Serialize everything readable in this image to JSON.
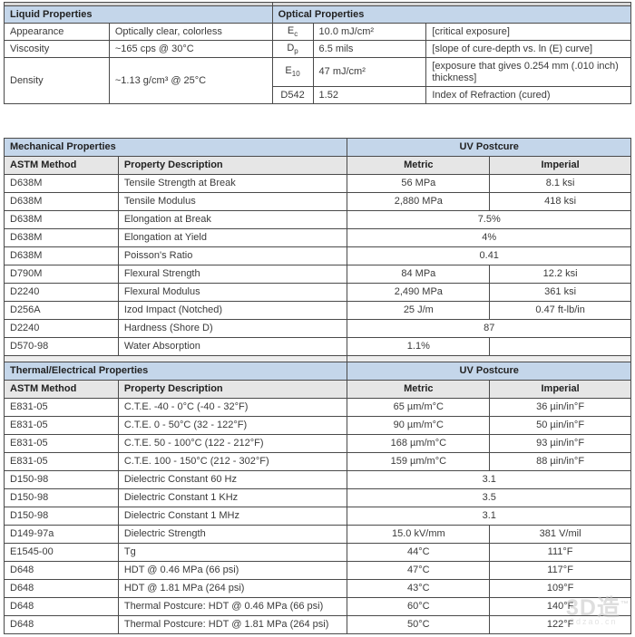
{
  "liquid_table": {
    "title": "Liquid Properties",
    "rows": [
      {
        "label": "Appearance",
        "value": "Optically clear, colorless"
      },
      {
        "label": "Viscosity",
        "value": "~165 cps @ 30°C"
      },
      {
        "label": "Density",
        "value": "~1.13 g/cm³ @ 25°C"
      }
    ]
  },
  "optical_table": {
    "title": "Optical Properties",
    "rows": [
      {
        "symbol_base": "E",
        "symbol_sub": "c",
        "value": "10.0 mJ/cm²",
        "description": "[critical exposure]"
      },
      {
        "symbol_base": "D",
        "symbol_sub": "p",
        "value": "6.5 mils",
        "description": "[slope of cure-depth vs. ln (E) curve]"
      },
      {
        "symbol_base": "E",
        "symbol_sub": "10",
        "value": "47 mJ/cm²",
        "description": "[exposure that gives 0.254 mm (.010 inch) thickness]"
      },
      {
        "symbol_base": "D542",
        "symbol_sub": "",
        "value": "1.52",
        "description": "Index of Refraction (cured)"
      }
    ]
  },
  "mechanical_table": {
    "title": "Mechanical Properties",
    "postcure_header": "UV Postcure",
    "columns": [
      "ASTM Method",
      "Property Description",
      "Metric",
      "Imperial"
    ],
    "rows": [
      {
        "method": "D638M",
        "property": "Tensile Strength at Break",
        "metric": "56 MPa",
        "imperial": "8.1 ksi",
        "span": false
      },
      {
        "method": "D638M",
        "property": "Tensile Modulus",
        "metric": "2,880 MPa",
        "imperial": "418 ksi",
        "span": false
      },
      {
        "method": "D638M",
        "property": "Elongation at Break",
        "metric": "7.5%",
        "imperial": "",
        "span": true
      },
      {
        "method": "D638M",
        "property": "Elongation at Yield",
        "metric": "4%",
        "imperial": "",
        "span": true
      },
      {
        "method": "D638M",
        "property": "Poisson's Ratio",
        "metric": "0.41",
        "imperial": "",
        "span": true
      },
      {
        "method": "D790M",
        "property": "Flexural Strength",
        "metric": "84 MPa",
        "imperial": "12.2 ksi",
        "span": false
      },
      {
        "method": "D2240",
        "property": "Flexural Modulus",
        "metric": "2,490 MPa",
        "imperial": "361 ksi",
        "span": false
      },
      {
        "method": "D256A",
        "property": "Izod Impact (Notched)",
        "metric": "25 J/m",
        "imperial": "0.47 ft-lb/in",
        "span": false
      },
      {
        "method": "D2240",
        "property": "Hardness (Shore D)",
        "metric": "87",
        "imperial": "",
        "span": true
      },
      {
        "method": "D570-98",
        "property": "Water Absorption",
        "metric": "1.1%",
        "imperial": "",
        "span": false
      }
    ]
  },
  "thermal_table": {
    "title": "Thermal/Electrical Properties",
    "postcure_header": "UV Postcure",
    "columns": [
      "ASTM Method",
      "Property Description",
      "Metric",
      "Imperial"
    ],
    "rows": [
      {
        "method": "E831-05",
        "property": "C.T.E. -40 - 0°C (-40 - 32°F)",
        "metric": "65 µm/m°C",
        "imperial": "36 µin/in°F",
        "span": false
      },
      {
        "method": "E831-05",
        "property": "C.T.E. 0 - 50°C (32 - 122°F)",
        "metric": "90 µm/m°C",
        "imperial": "50 µin/in°F",
        "span": false
      },
      {
        "method": "E831-05",
        "property": "C.T.E. 50 - 100°C (122 - 212°F)",
        "metric": "168 µm/m°C",
        "imperial": "93 µin/in°F",
        "span": false
      },
      {
        "method": "E831-05",
        "property": "C.T.E. 100 - 150°C (212 - 302°F)",
        "metric": "159 µm/m°C",
        "imperial": "88 µin/in°F",
        "span": false
      },
      {
        "method": "D150-98",
        "property": "Dielectric Constant 60 Hz",
        "metric": "3.1",
        "imperial": "",
        "span": true
      },
      {
        "method": "D150-98",
        "property": "Dielectric Constant 1 KHz",
        "metric": "3.5",
        "imperial": "",
        "span": true
      },
      {
        "method": "D150-98",
        "property": "Dielectric Constant 1 MHz",
        "metric": "3.1",
        "imperial": "",
        "span": true
      },
      {
        "method": "D149-97a",
        "property": "Dielectric Strength",
        "metric": "15.0 kV/mm",
        "imperial": "381 V/mil",
        "span": false
      },
      {
        "method": "E1545-00",
        "property": "Tg",
        "metric": "44°C",
        "imperial": "111°F",
        "span": false
      },
      {
        "method": "D648",
        "property": "HDT @ 0.46 MPa (66 psi)",
        "metric": "47°C",
        "imperial": "117°F",
        "span": false
      },
      {
        "method": "D648",
        "property": "HDT @ 1.81 MPa (264 psi)",
        "metric": "43°C",
        "imperial": "109°F",
        "span": false
      },
      {
        "method": "D648",
        "property": "Thermal Postcure: HDT @ 0.46 MPa (66 psi)",
        "metric": "60°C",
        "imperial": "140°F",
        "span": false
      },
      {
        "method": "D648",
        "property": "Thermal Postcure: HDT @ 1.81 MPa (264 psi)",
        "metric": "50°C",
        "imperial": "122°F",
        "span": false
      }
    ]
  },
  "watermark": {
    "logo": "3D造",
    "tm": "™",
    "url": "3dzao.cn"
  },
  "colors": {
    "section_header": "#c4d6ea",
    "column_header": "#e6e6e6",
    "border": "#4a4a4a"
  }
}
